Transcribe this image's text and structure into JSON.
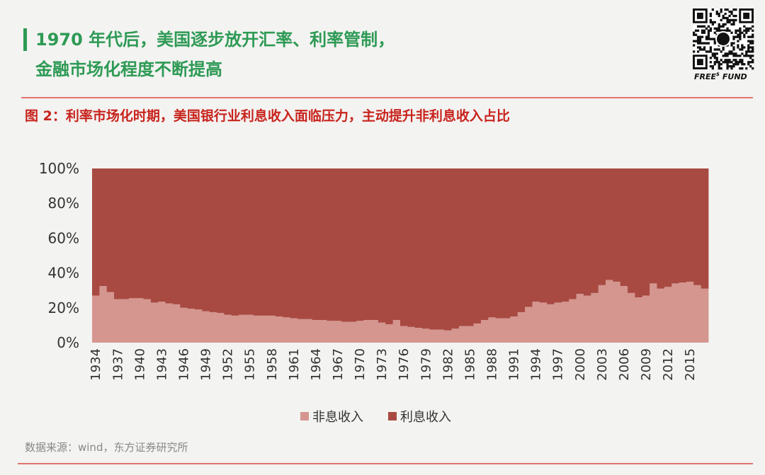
{
  "header": {
    "title_lines": [
      "1970 年代后，美国逐步放开汇率、利率管制，",
      "金融市场化程度不断提高"
    ],
    "brand": {
      "main": "FREE",
      "sup": "$",
      "tail": "FUND"
    }
  },
  "figure_title": "图 2：利率市场化时期，美国银行业利息收入面临压力，主动提升非利息收入占比",
  "chart_data": {
    "type": "stacked-area-step",
    "categories": [
      "1934",
      null,
      null,
      "1937",
      null,
      null,
      "1940",
      null,
      null,
      "1943",
      null,
      null,
      "1946",
      null,
      null,
      "1949",
      null,
      null,
      "1952",
      null,
      null,
      "1955",
      null,
      null,
      "1958",
      null,
      null,
      "1961",
      null,
      null,
      "1964",
      null,
      null,
      "1967",
      null,
      null,
      "1970",
      null,
      null,
      "1973",
      null,
      null,
      "1976",
      null,
      null,
      "1979",
      null,
      null,
      "1982",
      null,
      null,
      "1985",
      null,
      null,
      "1988",
      null,
      null,
      "1991",
      null,
      null,
      "1994",
      null,
      null,
      "1997",
      null,
      null,
      "2000",
      null,
      null,
      "2003",
      null,
      null,
      "2006",
      null,
      null,
      "2009",
      null,
      null,
      "2012",
      null,
      null,
      "2015",
      null,
      null
    ],
    "series": [
      {
        "name": "非息收入",
        "color": "#d4968f",
        "values": [
          27,
          32.5,
          29,
          25,
          25,
          25.5,
          25.5,
          25,
          23,
          23.5,
          22.5,
          22,
          20,
          19.5,
          19,
          18,
          17.5,
          17,
          16,
          15.5,
          16,
          16,
          15.5,
          15.5,
          15.5,
          15,
          14.5,
          14,
          13.5,
          13.5,
          13,
          13,
          12.5,
          12.5,
          12,
          12,
          12.5,
          13,
          13,
          11.5,
          10.5,
          13,
          9.5,
          9,
          8.5,
          8,
          7.5,
          7.5,
          7,
          8,
          9.5,
          9.5,
          11,
          13,
          14.5,
          14,
          14,
          15,
          17.5,
          20.5,
          23.5,
          23,
          22,
          23,
          23.5,
          25,
          28,
          27,
          28.5,
          33,
          36,
          35,
          32.5,
          28.5,
          26,
          27,
          34,
          31,
          32,
          34,
          34.5,
          35,
          33,
          31
        ]
      },
      {
        "name": "利息收入",
        "color": "#a84a42",
        "values": [
          73,
          67.5,
          71,
          75,
          75,
          74.5,
          74.5,
          75,
          77,
          76.5,
          77.5,
          78,
          80,
          80.5,
          81,
          82,
          82.5,
          83,
          84,
          84.5,
          84,
          84,
          84.5,
          84.5,
          84.5,
          85,
          85.5,
          86,
          86.5,
          86.5,
          87,
          87,
          87.5,
          87.5,
          88,
          88,
          87.5,
          87,
          87,
          88.5,
          89.5,
          87,
          90.5,
          91,
          91.5,
          92,
          92.5,
          92.5,
          93,
          92,
          90.5,
          90.5,
          89,
          87,
          85.5,
          86,
          86,
          85,
          82.5,
          79.5,
          76.5,
          77,
          78,
          77,
          76.5,
          75,
          72,
          73,
          71.5,
          67,
          64,
          65,
          67.5,
          71.5,
          74,
          73,
          66,
          69,
          68,
          66,
          65.5,
          65,
          67,
          69
        ]
      }
    ],
    "ylim": [
      0,
      100
    ],
    "yticks": [
      {
        "value": 0,
        "label": "0%"
      },
      {
        "value": 20,
        "label": "20%"
      },
      {
        "value": 40,
        "label": "40%"
      },
      {
        "value": 60,
        "label": "60%"
      },
      {
        "value": 80,
        "label": "80%"
      },
      {
        "value": 100,
        "label": "100%"
      }
    ]
  },
  "source": "数据来源：wind，东方证券研究所"
}
